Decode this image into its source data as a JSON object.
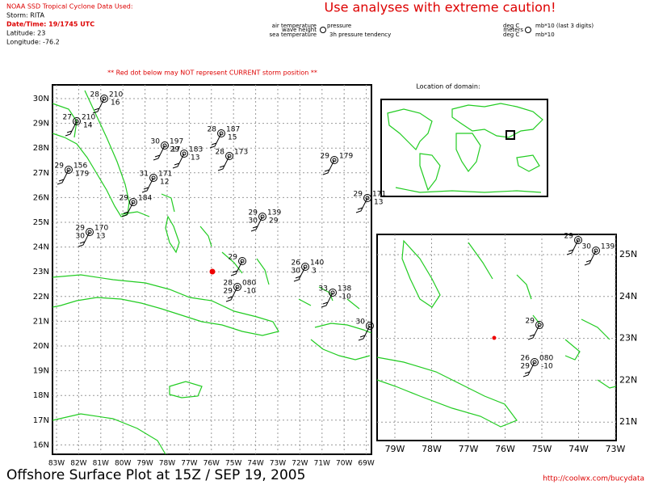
{
  "header": {
    "source": "NOAA SSD Tropical Cyclone Data Used:",
    "storm": "Storm: RITA",
    "datetime": "Date/Time: 19/1745 UTC",
    "latitude": "Latitude: 23",
    "longitude": "Longitude: -76.2",
    "caution": "Use analyses with extreme caution!",
    "warning": "** Red dot below may NOT represent CURRENT storm position **",
    "location_title": "Location of domain:"
  },
  "legend": {
    "air_temperature": "air temperature",
    "pressure": "pressure",
    "wave_height": "wave height",
    "sea_temperature": "sea temperature",
    "pressure_tendency": "3h pressure tendency",
    "unit_temp": "deg C",
    "unit_pressure": "mb*10 (last 3 digits)",
    "unit_wave": "meters",
    "unit_sea_temp": "deg C",
    "unit_tendency": "mb*10"
  },
  "main_map": {
    "lat_labels": [
      "30N",
      "29N",
      "28N",
      "27N",
      "26N",
      "25N",
      "24N",
      "23N",
      "22N",
      "21N",
      "20N",
      "19N",
      "18N",
      "17N",
      "16N"
    ],
    "lon_labels": [
      "83W",
      "82W",
      "81W",
      "80W",
      "79W",
      "78W",
      "77W",
      "76W",
      "75W",
      "74W",
      "73W",
      "72W",
      "71W",
      "70W",
      "69W"
    ],
    "stations": [
      {
        "temp": "28",
        "pressure": "080",
        "sea_temp": "29",
        "tendency": "-10"
      },
      {
        "temp": "26",
        "pressure": "140",
        "sea_temp": "30",
        "tendency": "3"
      },
      {
        "temp": "33",
        "pressure": "138",
        "tendency": "-10"
      },
      {
        "temp": "29",
        "pressure": "139",
        "sea_temp": "30",
        "tendency": "29"
      },
      {
        "temp": "28",
        "pressure": "173"
      },
      {
        "temp": "28",
        "pressure": "187",
        "tendency": "15"
      },
      {
        "temp": "29",
        "pressure": "179"
      },
      {
        "temp": "29",
        "pressure": "171",
        "tendency": "13"
      },
      {
        "temp": "29",
        "pressure": "170",
        "sea_temp": "30",
        "tendency": "13"
      },
      {
        "temp": "29",
        "pressure": "156",
        "tendency": "179"
      },
      {
        "temp": "31",
        "pressure": "171",
        "tendency": "12"
      },
      {
        "temp": "29",
        "pressure": "184"
      },
      {
        "temp": "29",
        "pressure": "183",
        "tendency": "13"
      },
      {
        "temp": "28",
        "pressure": "210",
        "tendency": "16"
      },
      {
        "temp": "27",
        "pressure": "210",
        "tendency": "14"
      },
      {
        "temp": "30",
        "pressure": "197",
        "tendency": "17"
      },
      {
        "temp": "30"
      },
      {
        "temp": "29"
      }
    ]
  },
  "zoom_map": {
    "lat_labels": [
      "25N",
      "24N",
      "23N",
      "22N",
      "21N"
    ],
    "lon_labels": [
      "79W",
      "78W",
      "77W",
      "76W",
      "75W",
      "74W",
      "73W"
    ],
    "stations": [
      {
        "temp": "26",
        "pressure": "080",
        "sea_temp": "29",
        "tendency": "-10"
      },
      {
        "temp": "30",
        "pressure": "139"
      },
      {
        "temp": "29"
      },
      {
        "temp": "29"
      }
    ]
  },
  "footer": {
    "title": "Offshore Surface Plot at 15Z / SEP 19, 2005",
    "url": "http://coolwx.com/bucydata"
  }
}
